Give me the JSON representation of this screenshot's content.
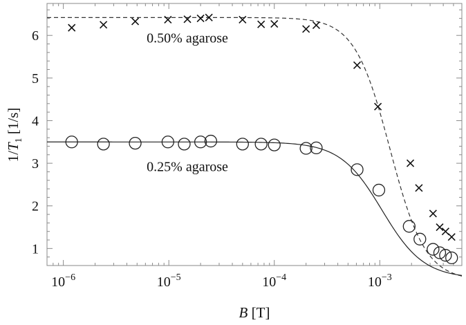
{
  "chart_data": {
    "type": "scatter",
    "title": "",
    "xlabel_var": "B",
    "xlabel_unit": " [T]",
    "ylabel_base": "1/",
    "ylabel_var": "T",
    "ylabel_sub": "1",
    "ylabel_unit": " [1/s]",
    "x_scale": "log",
    "xlim": [
      7e-07,
      0.006
    ],
    "ylim": [
      0.6,
      6.75
    ],
    "x_ticks": [
      {
        "value": 1e-06,
        "mantissa": "10",
        "exponent": "−6"
      },
      {
        "value": 1e-05,
        "mantissa": "10",
        "exponent": "−5"
      },
      {
        "value": 0.0001,
        "mantissa": "10",
        "exponent": "−4"
      },
      {
        "value": 0.001,
        "mantissa": "10",
        "exponent": "−3"
      }
    ],
    "y_ticks": [
      {
        "value": 1,
        "label": "1"
      },
      {
        "value": 2,
        "label": "2"
      },
      {
        "value": 3,
        "label": "3"
      },
      {
        "value": 4,
        "label": "4"
      },
      {
        "value": 5,
        "label": "5"
      },
      {
        "value": 6,
        "label": "6"
      }
    ],
    "grid": false,
    "legend": "none",
    "series": [
      {
        "name": "0.50% agarose",
        "marker": "cross",
        "fit_line": "dashed",
        "fit": {
          "plateau": 6.42,
          "floor": 0.25,
          "b0": 0.00125,
          "n": 2.6
        },
        "x": [
          1.2e-06,
          2.4e-06,
          4.8e-06,
          9.8e-06,
          1.5e-05,
          2e-05,
          2.4e-05,
          5e-05,
          7.5e-05,
          0.0001,
          0.0002,
          0.00025,
          0.00061,
          0.00096,
          0.00195,
          0.00235,
          0.0032,
          0.0037,
          0.0042,
          0.0048
        ],
        "y": [
          6.18,
          6.25,
          6.33,
          6.37,
          6.38,
          6.4,
          6.42,
          6.37,
          6.26,
          6.27,
          6.15,
          6.24,
          5.3,
          4.33,
          3.0,
          2.42,
          1.82,
          1.5,
          1.4,
          1.27
        ]
      },
      {
        "name": "0.25% agarose",
        "marker": "circle",
        "fit_line": "solid",
        "fit": {
          "plateau": 3.5,
          "floor": 0.3,
          "b0": 0.00105,
          "n": 2.2
        },
        "x": [
          1.2e-06,
          2.4e-06,
          4.8e-06,
          9.8e-06,
          1.4e-05,
          2e-05,
          2.5e-05,
          5e-05,
          7.5e-05,
          0.0001,
          0.0002,
          0.00025,
          0.00061,
          0.00098,
          0.0019,
          0.0024,
          0.0032,
          0.0037,
          0.0042,
          0.0048
        ],
        "y": [
          3.5,
          3.45,
          3.47,
          3.5,
          3.45,
          3.5,
          3.52,
          3.45,
          3.45,
          3.43,
          3.35,
          3.36,
          2.85,
          2.37,
          1.52,
          1.22,
          0.98,
          0.9,
          0.84,
          0.78
        ]
      }
    ],
    "annotations": [
      {
        "text": "0.50% agarose",
        "x": 1.5e-05,
        "y": 5.95
      },
      {
        "text": "0.25% agarose",
        "x": 1.5e-05,
        "y": 2.93
      }
    ]
  }
}
